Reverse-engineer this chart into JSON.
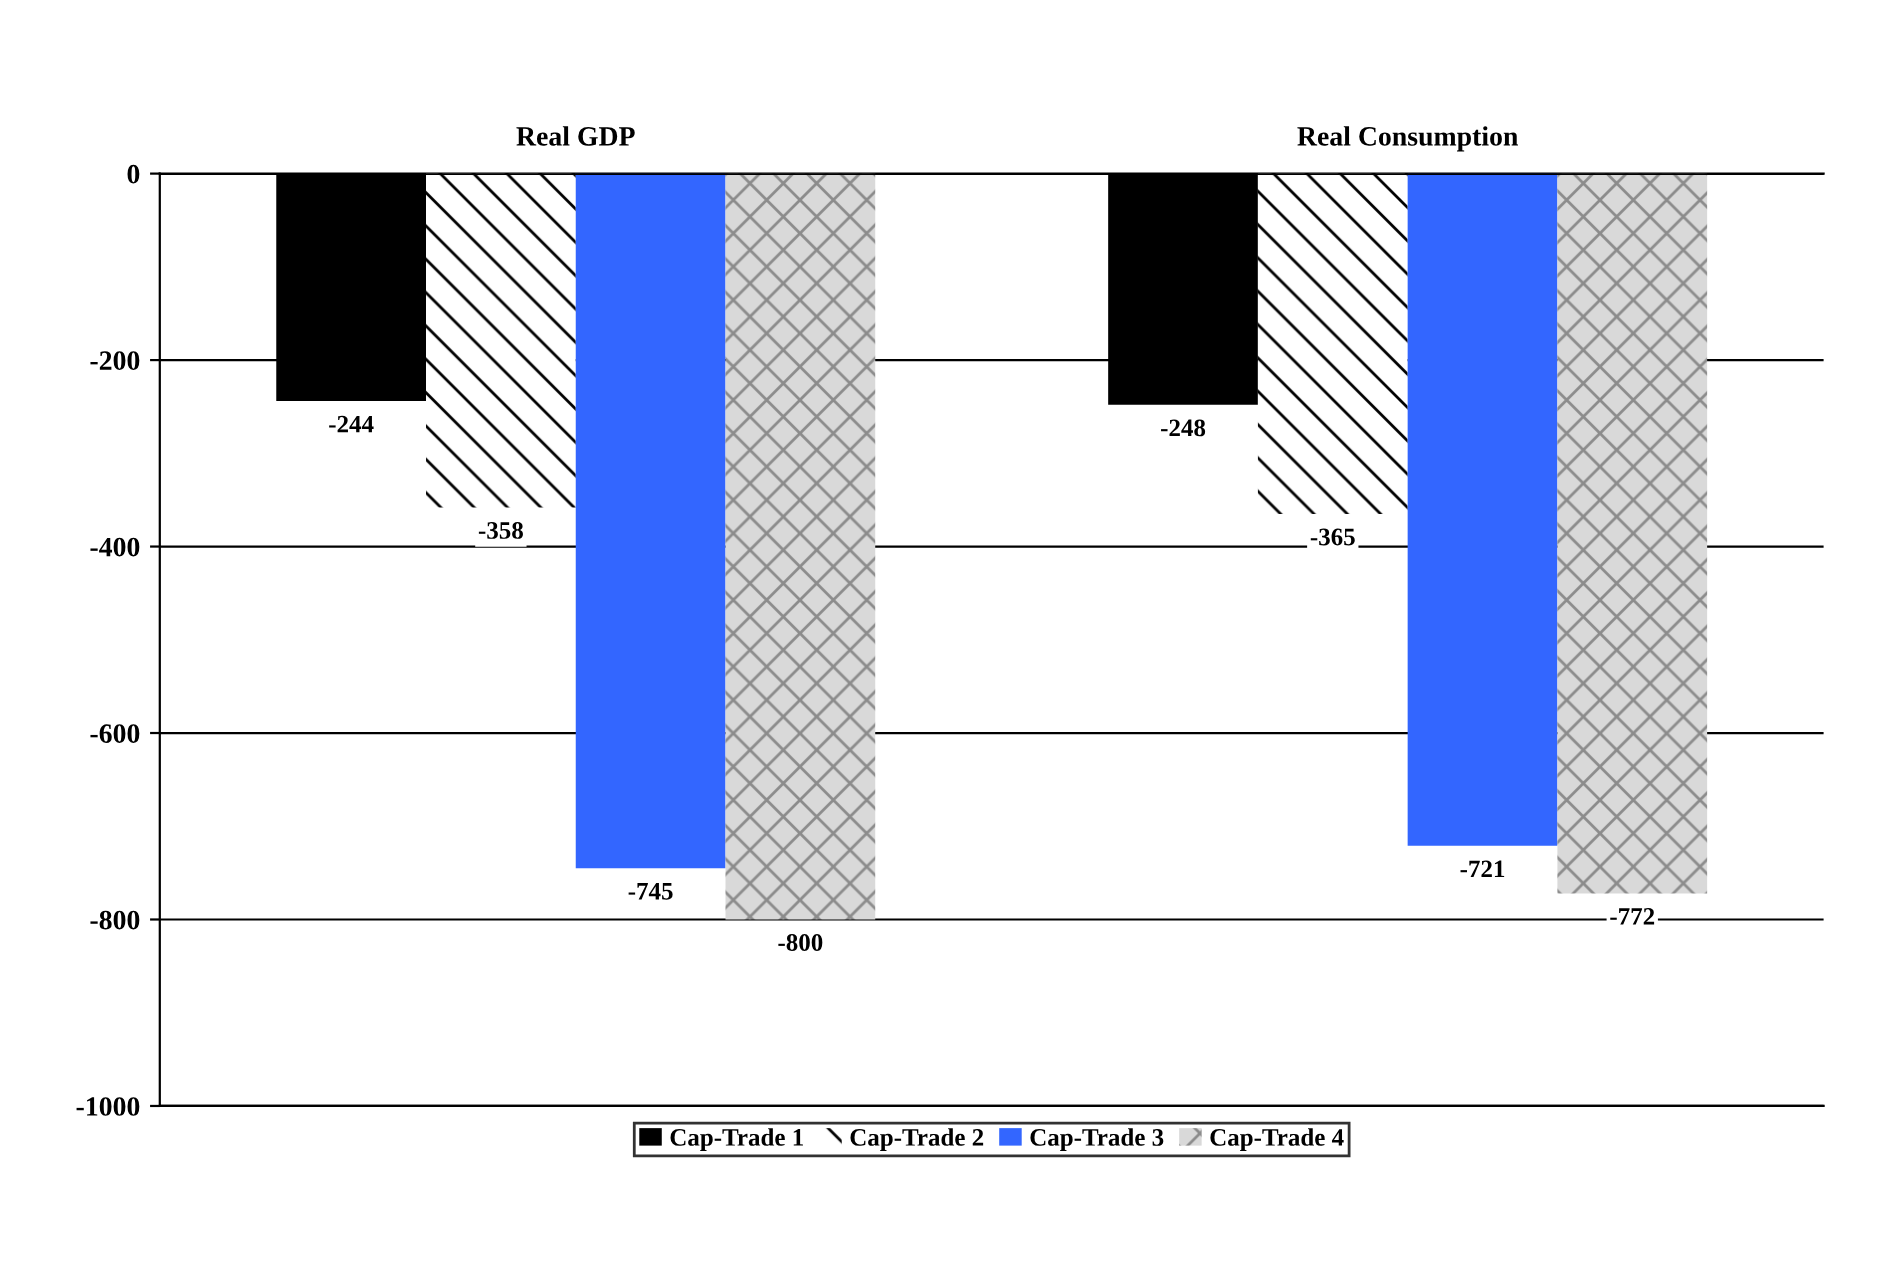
{
  "chart_data": {
    "type": "bar",
    "categories": [
      "Real GDP",
      "Real Consumption"
    ],
    "series": [
      {
        "name": "Cap-Trade 1",
        "color": "#000000",
        "values": [
          -244,
          -248
        ]
      },
      {
        "name": "Cap-Trade 2",
        "color": "#ffffff",
        "values": [
          -358,
          -365
        ]
      },
      {
        "name": "Cap-Trade 3",
        "color": "#3366ff",
        "values": [
          -745,
          -721
        ]
      },
      {
        "name": "Cap-Trade 4",
        "color": "#d9d9d9",
        "values": [
          -800,
          -772
        ]
      }
    ],
    "ylim": [
      -1000,
      0
    ],
    "yticks": [
      -1000,
      -800,
      -600,
      -400,
      -200,
      0
    ],
    "grid": "y",
    "legend": "bottom",
    "data_labels": true
  }
}
